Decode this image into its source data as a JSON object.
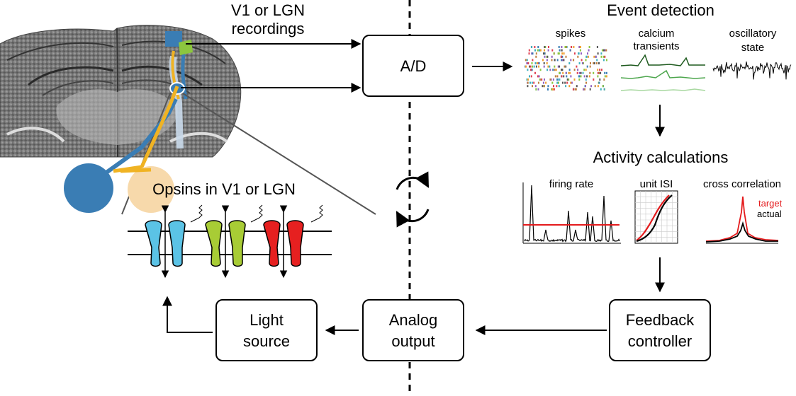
{
  "left_panel": {
    "recordings_label": [
      "V1 or LGN",
      "recordings"
    ],
    "opsins_label": "Opsins in V1 or LGN"
  },
  "boxes": {
    "ad": "A/D",
    "analog_output": [
      "Analog",
      "output"
    ],
    "light_source": [
      "Light",
      "source"
    ],
    "feedback_controller": [
      "Feedback",
      "controller"
    ]
  },
  "event_detection": {
    "title": "Event detection",
    "spikes": "spikes",
    "calcium": [
      "calcium",
      "transients"
    ],
    "oscillatory": [
      "oscillatory",
      "state"
    ]
  },
  "activity_calculations": {
    "title": "Activity calculations",
    "firing_rate": "firing rate",
    "unit_isi": "unit ISI",
    "cross_correlation": "cross correlation",
    "legend_target": "target",
    "legend_actual": "actual"
  },
  "colors": {
    "blue_region": "#3a7db4",
    "green_region": "#8cc63f",
    "orange_fiber": "#f0b323",
    "peach": "#f7d9ab",
    "opsin_blue": "#5bc3e6",
    "opsin_green": "#a8cc35",
    "opsin_red": "#e62020",
    "target_red": "#e41a1c"
  }
}
